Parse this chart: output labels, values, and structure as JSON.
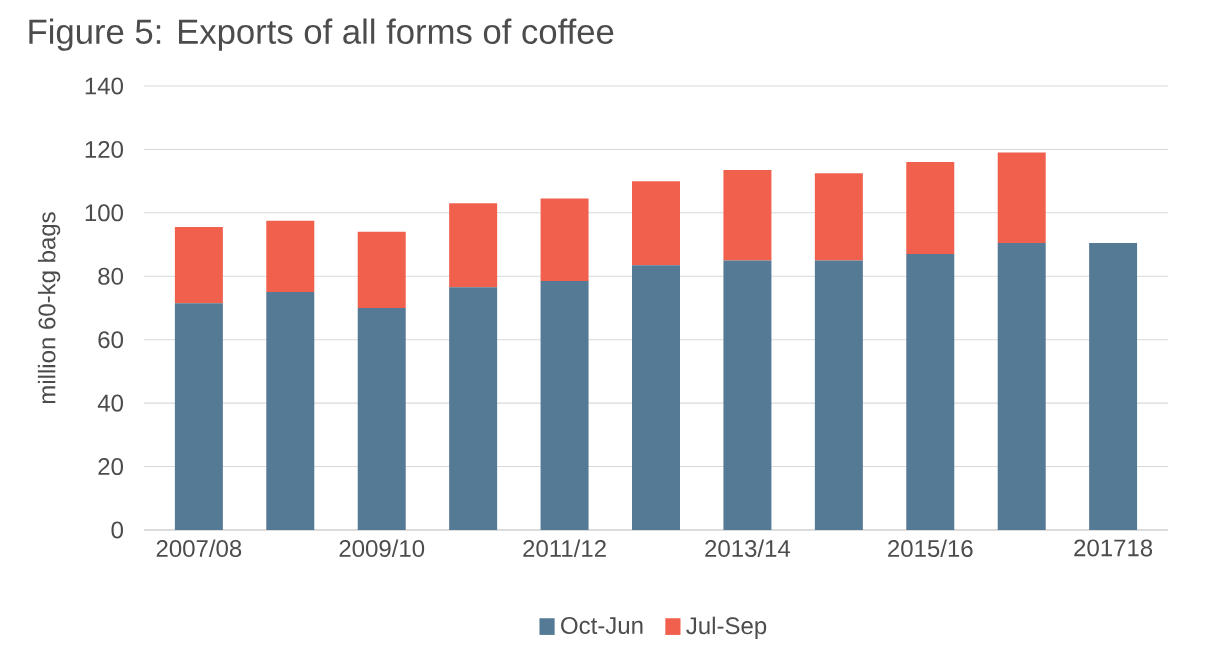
{
  "chart_data": {
    "type": "bar",
    "title": "Figure 5: Exports of all forms of coffee",
    "ylabel": "million 60-kg bags",
    "categories": [
      "2007/08",
      null,
      "2009/10",
      null,
      "2011/12",
      null,
      "2013/14",
      null,
      "2015/16",
      null,
      "201718"
    ],
    "stacked": true,
    "series": [
      {
        "name": "Oct-Jun",
        "color": "#557a95",
        "values": [
          71.5,
          75,
          70,
          76.5,
          78.5,
          83.5,
          85,
          85,
          87,
          90.5,
          90.5
        ]
      },
      {
        "name": "Jul-Sep",
        "color": "#f0604d",
        "values": [
          24,
          22.5,
          24,
          26.5,
          26,
          26.5,
          28.5,
          27.5,
          29,
          28.5,
          null
        ]
      }
    ],
    "ylim": [
      0,
      140
    ],
    "yticks": [
      0,
      20,
      40,
      60,
      80,
      100,
      120,
      140
    ],
    "grid": "y",
    "legend": "bottom"
  }
}
